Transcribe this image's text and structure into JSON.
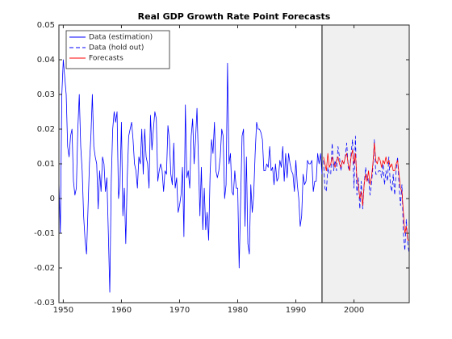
{
  "chart_data": {
    "type": "line",
    "title": "Real GDP Growth Rate Point Forecasts",
    "xlim": [
      1949.25,
      2009.5
    ],
    "xticks": [
      1950,
      1960,
      1970,
      1980,
      1990,
      2000
    ],
    "ylim": [
      -0.03,
      0.05
    ],
    "yticks": [
      -0.03,
      -0.02,
      -0.01,
      0,
      0.01,
      0.02,
      0.03,
      0.04,
      0.05
    ],
    "shaded_region": [
      1994.5,
      2009.5
    ],
    "shade_color": "#f0f0f0",
    "legend": "upper left",
    "series": [
      {
        "name": "Data (estimation)",
        "color": "#0000ff",
        "dash": false,
        "x": [
          1949.25,
          1949.5,
          1949.75,
          1950,
          1950.25,
          1950.5,
          1950.75,
          1951,
          1951.25,
          1951.5,
          1951.75,
          1952,
          1952.25,
          1952.5,
          1952.75,
          1953,
          1953.25,
          1953.5,
          1953.75,
          1954,
          1954.25,
          1954.5,
          1954.75,
          1955,
          1955.25,
          1955.5,
          1955.75,
          1956,
          1956.25,
          1956.5,
          1956.75,
          1957,
          1957.25,
          1957.5,
          1957.75,
          1958,
          1958.25,
          1958.5,
          1958.75,
          1959,
          1959.25,
          1959.5,
          1959.75,
          1960,
          1960.25,
          1960.5,
          1960.75,
          1961,
          1961.25,
          1961.5,
          1961.75,
          1962,
          1962.25,
          1962.5,
          1962.75,
          1963,
          1963.25,
          1963.5,
          1963.75,
          1964,
          1964.25,
          1964.5,
          1964.75,
          1965,
          1965.25,
          1965.5,
          1965.75,
          1966,
          1966.25,
          1966.5,
          1966.75,
          1967,
          1967.25,
          1967.5,
          1967.75,
          1968,
          1968.25,
          1968.5,
          1968.75,
          1969,
          1969.25,
          1969.5,
          1969.75,
          1970,
          1970.25,
          1970.5,
          1970.75,
          1971,
          1971.25,
          1971.5,
          1971.75,
          1972,
          1972.25,
          1972.5,
          1972.75,
          1973,
          1973.25,
          1973.5,
          1973.75,
          1974,
          1974.25,
          1974.5,
          1974.75,
          1975,
          1975.25,
          1975.5,
          1975.75,
          1976,
          1976.25,
          1976.5,
          1976.75,
          1977,
          1977.25,
          1977.5,
          1977.75,
          1978,
          1978.25,
          1978.5,
          1978.75,
          1979,
          1979.25,
          1979.5,
          1979.75,
          1980,
          1980.25,
          1980.5,
          1980.75,
          1981,
          1981.25,
          1981.5,
          1981.75,
          1982,
          1982.25,
          1982.5,
          1982.75,
          1983,
          1983.25,
          1983.5,
          1983.75,
          1984,
          1984.25,
          1984.5,
          1984.75,
          1985,
          1985.25,
          1985.5,
          1985.75,
          1986,
          1986.25,
          1986.5,
          1986.75,
          1987,
          1987.25,
          1987.5,
          1987.75,
          1988,
          1988.25,
          1988.5,
          1988.75,
          1989,
          1989.25,
          1989.5,
          1989.75,
          1990,
          1990.25,
          1990.5,
          1990.75,
          1991,
          1991.25,
          1991.5,
          1991.75,
          1992,
          1992.25,
          1992.5,
          1992.75,
          1993,
          1993.25,
          1993.5,
          1993.75,
          1994,
          1994.25,
          1994.5
        ],
        "values": [
          0.005,
          -0.01,
          0.03,
          0.04,
          0.035,
          0.03,
          0.015,
          0.012,
          0.018,
          0.02,
          0.005,
          0.001,
          0.003,
          0.02,
          0.03,
          0.015,
          0.008,
          -0.005,
          -0.012,
          -0.016,
          -0.003,
          0.01,
          0.018,
          0.03,
          0.015,
          0.012,
          0.01,
          -0.003,
          0.008,
          0.002,
          0.012,
          0.01,
          0.002,
          0.006,
          -0.01,
          -0.027,
          0.005,
          0.02,
          0.025,
          0.022,
          0.025,
          0.0,
          0.004,
          0.022,
          -0.005,
          0.003,
          -0.013,
          0.006,
          0.018,
          0.02,
          0.022,
          0.017,
          0.01,
          0.008,
          0.003,
          0.012,
          0.01,
          0.02,
          0.007,
          0.02,
          0.012,
          0.01,
          0.003,
          0.024,
          0.014,
          0.02,
          0.025,
          0.023,
          0.005,
          0.008,
          0.01,
          0.008,
          0.002,
          0.008,
          0.007,
          0.021,
          0.017,
          0.007,
          0.004,
          0.016,
          0.003,
          0.006,
          -0.004,
          -0.002,
          0.001,
          0.009,
          -0.011,
          0.027,
          0.006,
          0.008,
          0.003,
          0.018,
          0.023,
          0.01,
          0.017,
          0.026,
          0.011,
          -0.005,
          0.009,
          -0.009,
          0.003,
          -0.009,
          -0.004,
          -0.012,
          0.007,
          0.017,
          0.013,
          0.022,
          0.008,
          0.006,
          0.008,
          0.012,
          0.02,
          0.018,
          0.0,
          0.004,
          0.039,
          0.01,
          0.013,
          0.002,
          0.001,
          0.008,
          0.003,
          0.003,
          -0.02,
          -0.001,
          0.018,
          0.02,
          -0.008,
          0.012,
          -0.013,
          -0.016,
          0.004,
          -0.004,
          0.001,
          0.013,
          0.022,
          0.02,
          0.02,
          0.019,
          0.017,
          0.008,
          0.008,
          0.01,
          0.009,
          0.015,
          0.008,
          0.009,
          0.004,
          0.01,
          0.005,
          0.006,
          0.011,
          0.009,
          0.015,
          0.005,
          0.013,
          0.006,
          0.013,
          0.01,
          0.008,
          0.007,
          0.002,
          0.011,
          0.004,
          0.0,
          -0.008,
          -0.005,
          0.007,
          0.004,
          0.005,
          0.011,
          0.01,
          0.01,
          0.011,
          0.002,
          0.005,
          0.005,
          0.013,
          0.01,
          0.013,
          0.007
        ]
      },
      {
        "name": "Data (hold out)",
        "color": "#0000ff",
        "dash": true,
        "x": [
          1994.75,
          1995,
          1995.25,
          1995.5,
          1995.75,
          1996,
          1996.25,
          1996.5,
          1996.75,
          1997,
          1997.25,
          1997.5,
          1997.75,
          1998,
          1998.25,
          1998.5,
          1998.75,
          1999,
          1999.25,
          1999.5,
          1999.75,
          2000,
          2000.25,
          2000.5,
          2000.75,
          2001,
          2001.25,
          2001.5,
          2001.75,
          2002,
          2002.25,
          2002.5,
          2002.75,
          2003,
          2003.25,
          2003.5,
          2003.75,
          2004,
          2004.25,
          2004.5,
          2004.75,
          2005,
          2005.25,
          2005.5,
          2005.75,
          2006,
          2006.25,
          2006.5,
          2006.75,
          2007,
          2007.25,
          2007.5,
          2007.75,
          2008,
          2008.25,
          2008.5,
          2008.75,
          2009,
          2009.25,
          2009.5
        ],
        "values": [
          0.011,
          0.003,
          0.002,
          0.009,
          0.007,
          0.007,
          0.016,
          0.008,
          0.011,
          0.008,
          0.015,
          0.012,
          0.008,
          0.011,
          0.01,
          0.012,
          0.016,
          0.009,
          0.008,
          0.013,
          0.017,
          0.003,
          0.018,
          0.001,
          0.006,
          -0.003,
          0.005,
          -0.003,
          0.004,
          0.009,
          0.005,
          0.006,
          0.001,
          0.004,
          0.009,
          0.017,
          0.007,
          0.007,
          0.008,
          0.008,
          0.006,
          0.01,
          0.004,
          0.008,
          0.005,
          0.012,
          0.004,
          0.002,
          0.007,
          0.001,
          0.008,
          0.012,
          0.004,
          -0.002,
          0.004,
          -0.01,
          -0.015,
          -0.006,
          -0.013,
          -0.016
        ]
      },
      {
        "name": "Forecasts",
        "color": "#ff0000",
        "dash": false,
        "x": [
          1994.75,
          1995,
          1995.25,
          1995.5,
          1995.75,
          1996,
          1996.25,
          1996.5,
          1996.75,
          1997,
          1997.25,
          1997.5,
          1997.75,
          1998,
          1998.25,
          1998.5,
          1998.75,
          1999,
          1999.25,
          1999.5,
          1999.75,
          2000,
          2000.25,
          2000.5,
          2000.75,
          2001,
          2001.25,
          2001.5,
          2001.75,
          2002,
          2002.25,
          2002.5,
          2002.75,
          2003,
          2003.25,
          2003.5,
          2003.75,
          2004,
          2004.25,
          2004.5,
          2004.75,
          2005,
          2005.25,
          2005.5,
          2005.75,
          2006,
          2006.25,
          2006.5,
          2006.75,
          2007,
          2007.25,
          2007.5,
          2007.75,
          2008,
          2008.25,
          2008.5,
          2008.75,
          2009,
          2009.25,
          2009.5
        ],
        "values": [
          0.012,
          0.01,
          0.008,
          0.013,
          0.009,
          0.01,
          0.012,
          0.01,
          0.009,
          0.011,
          0.012,
          0.01,
          0.009,
          0.011,
          0.01,
          0.012,
          0.013,
          0.01,
          0.008,
          0.012,
          0.014,
          0.01,
          0.013,
          0.006,
          0.004,
          0.0,
          0.002,
          -0.002,
          0.004,
          0.007,
          0.005,
          0.008,
          0.004,
          0.006,
          0.01,
          0.016,
          0.011,
          0.01,
          0.012,
          0.011,
          0.009,
          0.011,
          0.01,
          0.012,
          0.01,
          0.011,
          0.009,
          0.01,
          0.008,
          0.008,
          0.01,
          0.011,
          0.007,
          0.003,
          0.002,
          -0.004,
          -0.01,
          -0.008,
          -0.012,
          -0.012
        ]
      }
    ]
  }
}
